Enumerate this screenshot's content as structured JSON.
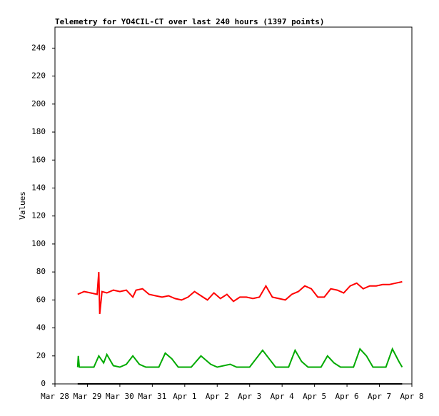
{
  "chart_data": {
    "type": "line",
    "title": "Telemetry for YO4CIL-CT over last 240 hours (1397 points)",
    "y_label": "Values",
    "xlim": [
      28,
      39
    ],
    "xticks": [
      {
        "value": 28,
        "label": "Mar 28"
      },
      {
        "value": 29,
        "label": "Mar 29"
      },
      {
        "value": 30,
        "label": "Mar 30"
      },
      {
        "value": 31,
        "label": "Mar 31"
      },
      {
        "value": 32,
        "label": "Apr 1"
      },
      {
        "value": 33,
        "label": "Apr 2"
      },
      {
        "value": 34,
        "label": "Apr 3"
      },
      {
        "value": 35,
        "label": "Apr 4"
      },
      {
        "value": 36,
        "label": "Apr 5"
      },
      {
        "value": 37,
        "label": "Apr 6"
      },
      {
        "value": 38,
        "label": "Apr 7"
      },
      {
        "value": 39,
        "label": "Apr 8"
      }
    ],
    "ylim": [
      0,
      255
    ],
    "yticks": [
      0,
      20,
      40,
      60,
      80,
      100,
      120,
      140,
      160,
      180,
      200,
      220,
      240
    ],
    "series": [
      {
        "color": "#ff0000",
        "x": [
          28.7,
          28.9,
          29.1,
          29.3,
          29.35,
          29.38,
          29.45,
          29.6,
          29.8,
          30.0,
          30.2,
          30.4,
          30.5,
          30.7,
          30.9,
          31.1,
          31.3,
          31.5,
          31.7,
          31.9,
          32.1,
          32.3,
          32.5,
          32.7,
          32.9,
          33.1,
          33.3,
          33.5,
          33.7,
          33.9,
          34.1,
          34.3,
          34.5,
          34.7,
          34.9,
          35.1,
          35.3,
          35.5,
          35.7,
          35.9,
          36.1,
          36.3,
          36.5,
          36.7,
          36.9,
          37.1,
          37.3,
          37.5,
          37.7,
          37.9,
          38.1,
          38.3,
          38.5,
          38.7
        ],
        "values": [
          64,
          66,
          65,
          64,
          80,
          50,
          66,
          65,
          67,
          66,
          67,
          62,
          67,
          68,
          64,
          63,
          62,
          63,
          61,
          60,
          62,
          66,
          63,
          60,
          65,
          61,
          64,
          59,
          62,
          62,
          61,
          62,
          70,
          62,
          61,
          60,
          64,
          66,
          70,
          68,
          62,
          62,
          68,
          67,
          65,
          70,
          72,
          68,
          70,
          70,
          71,
          71,
          72,
          73
        ]
      },
      {
        "color": "#00aa00",
        "x": [
          28.7,
          28.72,
          28.75,
          29.0,
          29.2,
          29.35,
          29.5,
          29.6,
          29.8,
          30.0,
          30.2,
          30.4,
          30.6,
          30.8,
          31.2,
          31.4,
          31.6,
          31.8,
          32.2,
          32.5,
          32.8,
          33.0,
          33.4,
          33.6,
          34.0,
          34.4,
          34.6,
          34.8,
          35.2,
          35.4,
          35.6,
          35.8,
          36.2,
          36.4,
          36.6,
          36.8,
          37.2,
          37.4,
          37.6,
          37.8,
          38.2,
          38.4,
          38.6,
          38.7
        ],
        "values": [
          12,
          20,
          12,
          12,
          12,
          20,
          15,
          21,
          13,
          12,
          14,
          20,
          14,
          12,
          12,
          22,
          18,
          12,
          12,
          20,
          14,
          12,
          14,
          12,
          12,
          24,
          18,
          12,
          12,
          24,
          16,
          12,
          12,
          20,
          15,
          12,
          12,
          25,
          20,
          12,
          12,
          25,
          16,
          12
        ]
      },
      {
        "color": "#000000",
        "x": [
          28.7,
          38.7
        ],
        "values": [
          0,
          0
        ]
      }
    ]
  }
}
